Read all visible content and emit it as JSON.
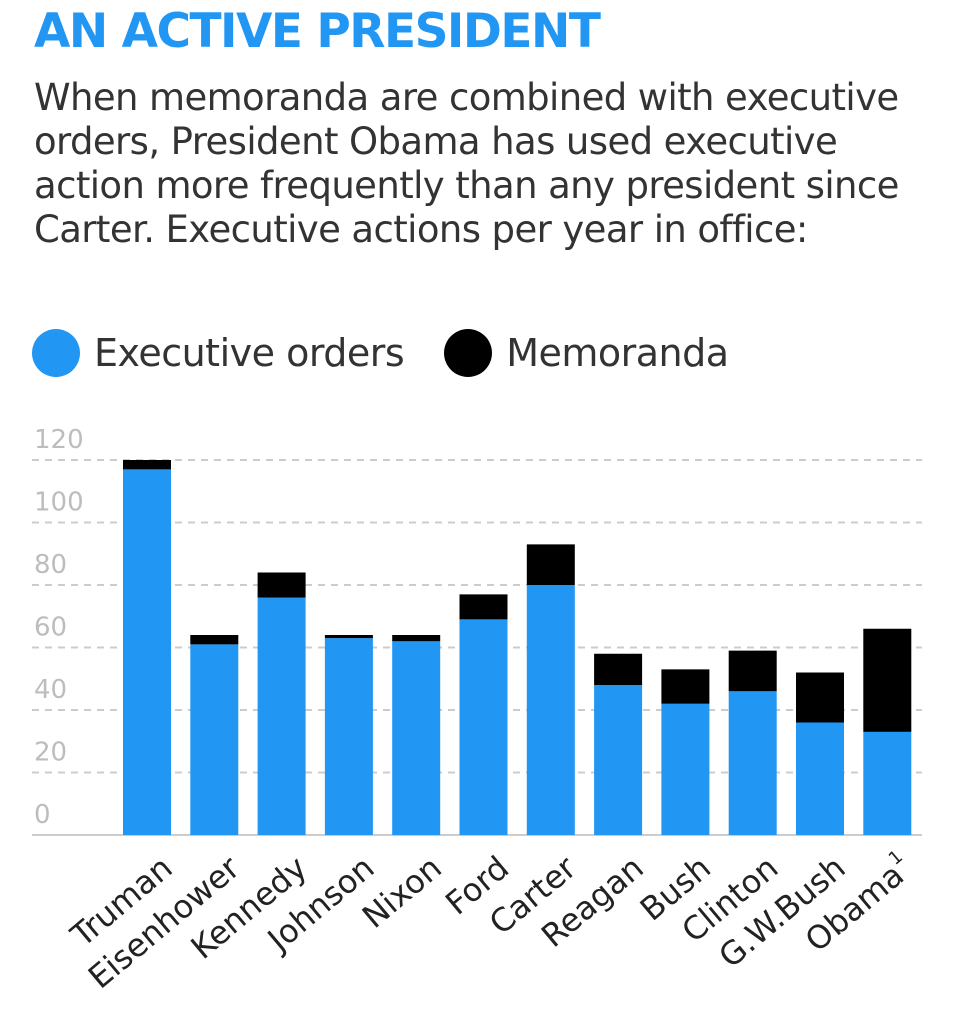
{
  "title": "AN ACTIVE PRESIDENT",
  "subtitle": "When memoranda are combined with executive orders, President Obama has used executive action more frequently than any president since Carter. Executive actions per year in office:",
  "legend": {
    "orders_label": "Executive orders",
    "memoranda_label": "Memoranda"
  },
  "colors": {
    "orders": "#2196F3",
    "memoranda": "#000000"
  },
  "chart_data": {
    "type": "bar",
    "stacked": true,
    "categories": [
      "Truman",
      "Eisenhower",
      "Kennedy",
      "Johnson",
      "Nixon",
      "Ford",
      "Carter",
      "Reagan",
      "Bush",
      "Clinton",
      "G.W.Bush",
      "Obama"
    ],
    "category_marks": [
      "",
      "",
      "",
      "",
      "",
      "",
      "",
      "",
      "",
      "",
      "",
      "1"
    ],
    "series": [
      {
        "name": "Executive orders",
        "values": [
          117,
          61,
          76,
          63,
          62,
          69,
          80,
          48,
          42,
          46,
          36,
          33
        ]
      },
      {
        "name": "Memoranda",
        "values": [
          3,
          3,
          8,
          1,
          2,
          8,
          13,
          10,
          11,
          13,
          16,
          33
        ]
      }
    ],
    "ylim": [
      0,
      120
    ],
    "yticks": [
      0,
      20,
      40,
      60,
      80,
      100,
      120
    ],
    "grid": true,
    "legend_position": "top-left"
  }
}
